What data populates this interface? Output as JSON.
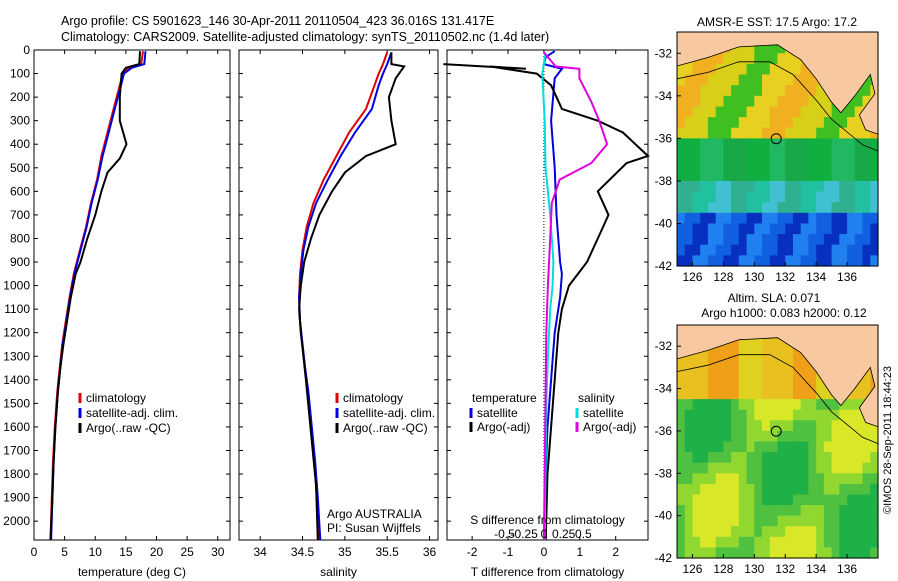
{
  "header": {
    "line1": "Argo profile: CS 5901623_146 30-Apr-2011 20110504_423 36.016S 131.417E",
    "line2": "Climatology: CARS2009. Satellite-adjusted climatology: synTS_20110502.nc (1.4d later)"
  },
  "colors": {
    "climatology": "#e00000",
    "satellite": "#0000e0",
    "argo": "#000000",
    "sat_salt": "#00dddd",
    "argo_salt": "#e000e0",
    "land": "#f8c8a0"
  },
  "chart_data": [
    {
      "id": "temperature",
      "type": "line",
      "xlabel": "temperature (deg C)",
      "ylabel": "",
      "xlim": [
        0,
        32
      ],
      "ylim": [
        2080,
        0
      ],
      "y_reversed": true,
      "xticks": [
        "0",
        "5",
        "10",
        "15",
        "20",
        "25",
        "30"
      ],
      "xtick_values": [
        0,
        5,
        10,
        15,
        20,
        25,
        30
      ],
      "yticks": [
        "0",
        "100",
        "200",
        "300",
        "400",
        "500",
        "600",
        "700",
        "800",
        "900",
        "1000",
        "1100",
        "1200",
        "1300",
        "1400",
        "1500",
        "1600",
        "1700",
        "1800",
        "1900",
        "2000"
      ],
      "ytick_values": [
        0,
        100,
        200,
        300,
        400,
        500,
        600,
        700,
        800,
        900,
        1000,
        1100,
        1200,
        1300,
        1400,
        1500,
        1600,
        1700,
        1800,
        1900,
        2000
      ],
      "legend": [
        "climatology",
        "satellite-adj. clim.",
        "Argo(..raw -QC)"
      ],
      "legend_loc": "lower-center",
      "series": [
        {
          "name": "climatology",
          "color": "#e00000",
          "points": [
            [
              17.8,
              5
            ],
            [
              17.5,
              60
            ],
            [
              15.5,
              75
            ],
            [
              14.5,
              100
            ],
            [
              14,
              150
            ],
            [
              13,
              250
            ],
            [
              12,
              350
            ],
            [
              11,
              450
            ],
            [
              10.3,
              550
            ],
            [
              9.3,
              650
            ],
            [
              8.5,
              750
            ],
            [
              7.5,
              850
            ],
            [
              6.5,
              950
            ],
            [
              5.8,
              1050
            ],
            [
              5.2,
              1150
            ],
            [
              4.6,
              1250
            ],
            [
              4.2,
              1350
            ],
            [
              3.8,
              1450
            ],
            [
              3.4,
              1600
            ],
            [
              3.1,
              1750
            ],
            [
              2.9,
              1900
            ],
            [
              2.7,
              2080
            ]
          ]
        },
        {
          "name": "satellite-adj. clim.",
          "color": "#0000e0",
          "points": [
            [
              18.2,
              5
            ],
            [
              18,
              60
            ],
            [
              16,
              75
            ],
            [
              14.7,
              100
            ],
            [
              14.2,
              150
            ],
            [
              13.2,
              250
            ],
            [
              12.2,
              350
            ],
            [
              11.2,
              450
            ],
            [
              10.4,
              550
            ],
            [
              9.4,
              650
            ],
            [
              8.6,
              750
            ],
            [
              7.6,
              850
            ],
            [
              6.6,
              950
            ],
            [
              5.9,
              1050
            ],
            [
              5.3,
              1150
            ],
            [
              4.7,
              1250
            ],
            [
              4.3,
              1350
            ],
            [
              3.9,
              1450
            ],
            [
              3.5,
              1600
            ],
            [
              3.2,
              1750
            ],
            [
              3,
              1900
            ],
            [
              2.8,
              2080
            ]
          ]
        },
        {
          "name": "Argo(..raw -QC)",
          "color": "#000000",
          "points": [
            [
              17.3,
              5
            ],
            [
              17.2,
              60
            ],
            [
              15,
              75
            ],
            [
              14.3,
              100
            ],
            [
              14,
              200
            ],
            [
              14,
              300
            ],
            [
              15.1,
              400
            ],
            [
              14,
              460
            ],
            [
              12,
              520
            ],
            [
              11,
              600
            ],
            [
              10,
              700
            ],
            [
              8.7,
              800
            ],
            [
              7.6,
              900
            ],
            [
              6.8,
              950
            ],
            [
              6,
              1050
            ],
            [
              5.4,
              1150
            ],
            [
              4.8,
              1250
            ],
            [
              4.3,
              1350
            ],
            [
              3.9,
              1450
            ],
            [
              3.5,
              1600
            ],
            [
              3.2,
              1750
            ],
            [
              3,
              1900
            ],
            [
              2.7,
              2080
            ]
          ]
        }
      ]
    },
    {
      "id": "salinity",
      "type": "line",
      "xlabel": "salinity",
      "ylabel": "",
      "xlim": [
        33.75,
        36.1
      ],
      "ylim": [
        2080,
        0
      ],
      "y_reversed": true,
      "xticks": [
        "34",
        "34.5",
        "35",
        "35.5",
        "36"
      ],
      "xtick_values": [
        34,
        34.5,
        35,
        35.5,
        36
      ],
      "legend": [
        "climatology",
        "satellite-adj. clim.",
        "Argo(..raw -QC)"
      ],
      "legend_loc": "lower-center",
      "annotation": [
        "Argo AUSTRALIA",
        "PI: Susan Wijffels"
      ],
      "series": [
        {
          "name": "climatology",
          "color": "#e00000",
          "points": [
            [
              35.5,
              10
            ],
            [
              35.45,
              60
            ],
            [
              35.4,
              100
            ],
            [
              35.35,
              150
            ],
            [
              35.25,
              250
            ],
            [
              35.05,
              350
            ],
            [
              34.9,
              450
            ],
            [
              34.75,
              550
            ],
            [
              34.63,
              650
            ],
            [
              34.55,
              750
            ],
            [
              34.5,
              850
            ],
            [
              34.47,
              950
            ],
            [
              34.46,
              1050
            ],
            [
              34.47,
              1150
            ],
            [
              34.5,
              1250
            ],
            [
              34.53,
              1350
            ],
            [
              34.56,
              1450
            ],
            [
              34.6,
              1600
            ],
            [
              34.64,
              1750
            ],
            [
              34.67,
              1900
            ],
            [
              34.7,
              2080
            ]
          ]
        },
        {
          "name": "satellite-adj. clim.",
          "color": "#0000e0",
          "points": [
            [
              35.55,
              10
            ],
            [
              35.5,
              60
            ],
            [
              35.45,
              100
            ],
            [
              35.4,
              150
            ],
            [
              35.32,
              250
            ],
            [
              35.12,
              350
            ],
            [
              34.95,
              450
            ],
            [
              34.8,
              550
            ],
            [
              34.66,
              650
            ],
            [
              34.57,
              750
            ],
            [
              34.51,
              850
            ],
            [
              34.48,
              950
            ],
            [
              34.46,
              1050
            ],
            [
              34.47,
              1150
            ],
            [
              34.5,
              1250
            ],
            [
              34.53,
              1350
            ],
            [
              34.57,
              1450
            ],
            [
              34.61,
              1600
            ],
            [
              34.65,
              1750
            ],
            [
              34.68,
              1900
            ],
            [
              34.71,
              2080
            ]
          ]
        },
        {
          "name": "Argo(..raw -QC)",
          "color": "#000000",
          "points": [
            [
              35.55,
              10
            ],
            [
              35.55,
              60
            ],
            [
              35.7,
              70
            ],
            [
              35.6,
              120
            ],
            [
              35.52,
              200
            ],
            [
              35.55,
              300
            ],
            [
              35.6,
              400
            ],
            [
              35.25,
              450
            ],
            [
              35.0,
              520
            ],
            [
              34.85,
              600
            ],
            [
              34.7,
              700
            ],
            [
              34.6,
              800
            ],
            [
              34.52,
              900
            ],
            [
              34.48,
              1000
            ],
            [
              34.46,
              1100
            ],
            [
              34.48,
              1200
            ],
            [
              34.51,
              1300
            ],
            [
              34.54,
              1400
            ],
            [
              34.58,
              1550
            ],
            [
              34.62,
              1700
            ],
            [
              34.66,
              1850
            ],
            [
              34.68,
              2080
            ]
          ]
        }
      ]
    },
    {
      "id": "difference",
      "type": "line",
      "xlabel": "T difference from climatology",
      "xlabel_top": "S difference from climatology",
      "xlim": [
        -2.7,
        2.9
      ],
      "ylim": [
        2080,
        0
      ],
      "y_reversed": true,
      "xticks": [
        "-2",
        "-1",
        "0",
        "1",
        "2"
      ],
      "xtick_values": [
        -2,
        -1,
        0,
        1,
        2
      ],
      "sticks": [
        "-0.5",
        "-0.25",
        "0",
        "0.25",
        "0.5"
      ],
      "stick_values": [
        -0.5,
        -0.25,
        0,
        0.25,
        0.5
      ],
      "legend_left_title": "temperature",
      "legend_right_title": "salinity",
      "legend_left": [
        "satellite",
        "Argo(-adj)"
      ],
      "legend_right": [
        "satellite",
        "Argo(-adj)"
      ],
      "legend_loc": "lower-center",
      "series": [
        {
          "name": "satellite",
          "color": "#0000e0",
          "points": [
            [
              0.3,
              5
            ],
            [
              0.05,
              30
            ],
            [
              0.0,
              60
            ],
            [
              0.5,
              80
            ],
            [
              0.3,
              120
            ],
            [
              0.2,
              300
            ],
            [
              0.3,
              500
            ],
            [
              0.35,
              700
            ],
            [
              0.4,
              800
            ],
            [
              0.45,
              900
            ],
            [
              0.5,
              950
            ],
            [
              0.45,
              1050
            ],
            [
              0.3,
              1200
            ],
            [
              0.2,
              1400
            ],
            [
              0.1,
              1600
            ],
            [
              0.05,
              1800
            ],
            [
              0.05,
              2080
            ]
          ]
        },
        {
          "name": "Argo(-adj)",
          "color": "#000000",
          "points": [
            [
              -2.8,
              60
            ],
            [
              -0.5,
              80
            ],
            [
              -1.5,
              70
            ],
            [
              -0.2,
              100
            ],
            [
              0.2,
              150
            ],
            [
              0.5,
              250
            ],
            [
              1.5,
              300
            ],
            [
              2.2,
              350
            ],
            [
              2.9,
              450
            ],
            [
              2.3,
              480
            ],
            [
              1.5,
              600
            ],
            [
              1.8,
              700
            ],
            [
              1.5,
              800
            ],
            [
              1.2,
              900
            ],
            [
              0.7,
              1000
            ],
            [
              0.5,
              1100
            ],
            [
              0.4,
              1200
            ],
            [
              0.3,
              1400
            ],
            [
              0.2,
              1600
            ],
            [
              0.1,
              1800
            ],
            [
              0.05,
              2080
            ]
          ]
        }
      ],
      "salinity_series": [
        {
          "name": "satellite",
          "color": "#00dddd",
          "points": [
            [
              0.02,
              10
            ],
            [
              0.0,
              60
            ],
            [
              -0.02,
              100
            ],
            [
              0.01,
              300
            ],
            [
              0.02,
              500
            ],
            [
              0.05,
              600
            ],
            [
              0.08,
              700
            ],
            [
              0.1,
              800
            ],
            [
              0.12,
              900
            ],
            [
              0.11,
              1000
            ],
            [
              0.08,
              1100
            ],
            [
              0.05,
              1300
            ],
            [
              0.03,
              1500
            ],
            [
              0.02,
              1800
            ],
            [
              0.01,
              2080
            ]
          ]
        },
        {
          "name": "Argo(-adj)",
          "color": "#e000e0",
          "points": [
            [
              0.0,
              10
            ],
            [
              0.15,
              70
            ],
            [
              0.45,
              80
            ],
            [
              0.45,
              120
            ],
            [
              0.6,
              220
            ],
            [
              0.7,
              300
            ],
            [
              0.8,
              400
            ],
            [
              0.6,
              480
            ],
            [
              0.2,
              550
            ],
            [
              0.1,
              650
            ],
            [
              0.08,
              800
            ],
            [
              0.05,
              1000
            ],
            [
              0.03,
              1200
            ],
            [
              0.02,
              1500
            ],
            [
              0.01,
              1800
            ],
            [
              0.0,
              2080
            ]
          ]
        }
      ]
    },
    {
      "id": "sst_map",
      "type": "heatmap",
      "title": "AMSR-E SST: 17.5 Argo: 17.2",
      "xlim": [
        125,
        138
      ],
      "ylim": [
        -42,
        -31
      ],
      "xticks": [
        "126",
        "128",
        "130",
        "132",
        "134",
        "136"
      ],
      "xtick_values": [
        126,
        128,
        130,
        132,
        134,
        136
      ],
      "yticks": [
        "-32",
        "-34",
        "-36",
        "-38",
        "-40",
        "-42"
      ],
      "ytick_values": [
        -32,
        -34,
        -36,
        -38,
        -40,
        -42
      ],
      "marker": {
        "lon": 131.417,
        "lat": -36.016
      }
    },
    {
      "id": "sla_map",
      "type": "heatmap",
      "title": "Altim. SLA: 0.071",
      "subtitle": "Argo h1000: 0.083 h2000: 0.12",
      "xlim": [
        125,
        138
      ],
      "ylim": [
        -42,
        -31
      ],
      "xticks": [
        "126",
        "128",
        "130",
        "132",
        "134",
        "136"
      ],
      "xtick_values": [
        126,
        128,
        130,
        132,
        134,
        136
      ],
      "yticks": [
        "-32",
        "-34",
        "-36",
        "-38",
        "-40",
        "-42"
      ],
      "ytick_values": [
        -32,
        -34,
        -36,
        -38,
        -40,
        -42
      ],
      "marker": {
        "lon": 131.417,
        "lat": -36.016
      }
    }
  ],
  "footer": {
    "credit": "©IMOS 28-Sep-2011 18:44:23"
  }
}
